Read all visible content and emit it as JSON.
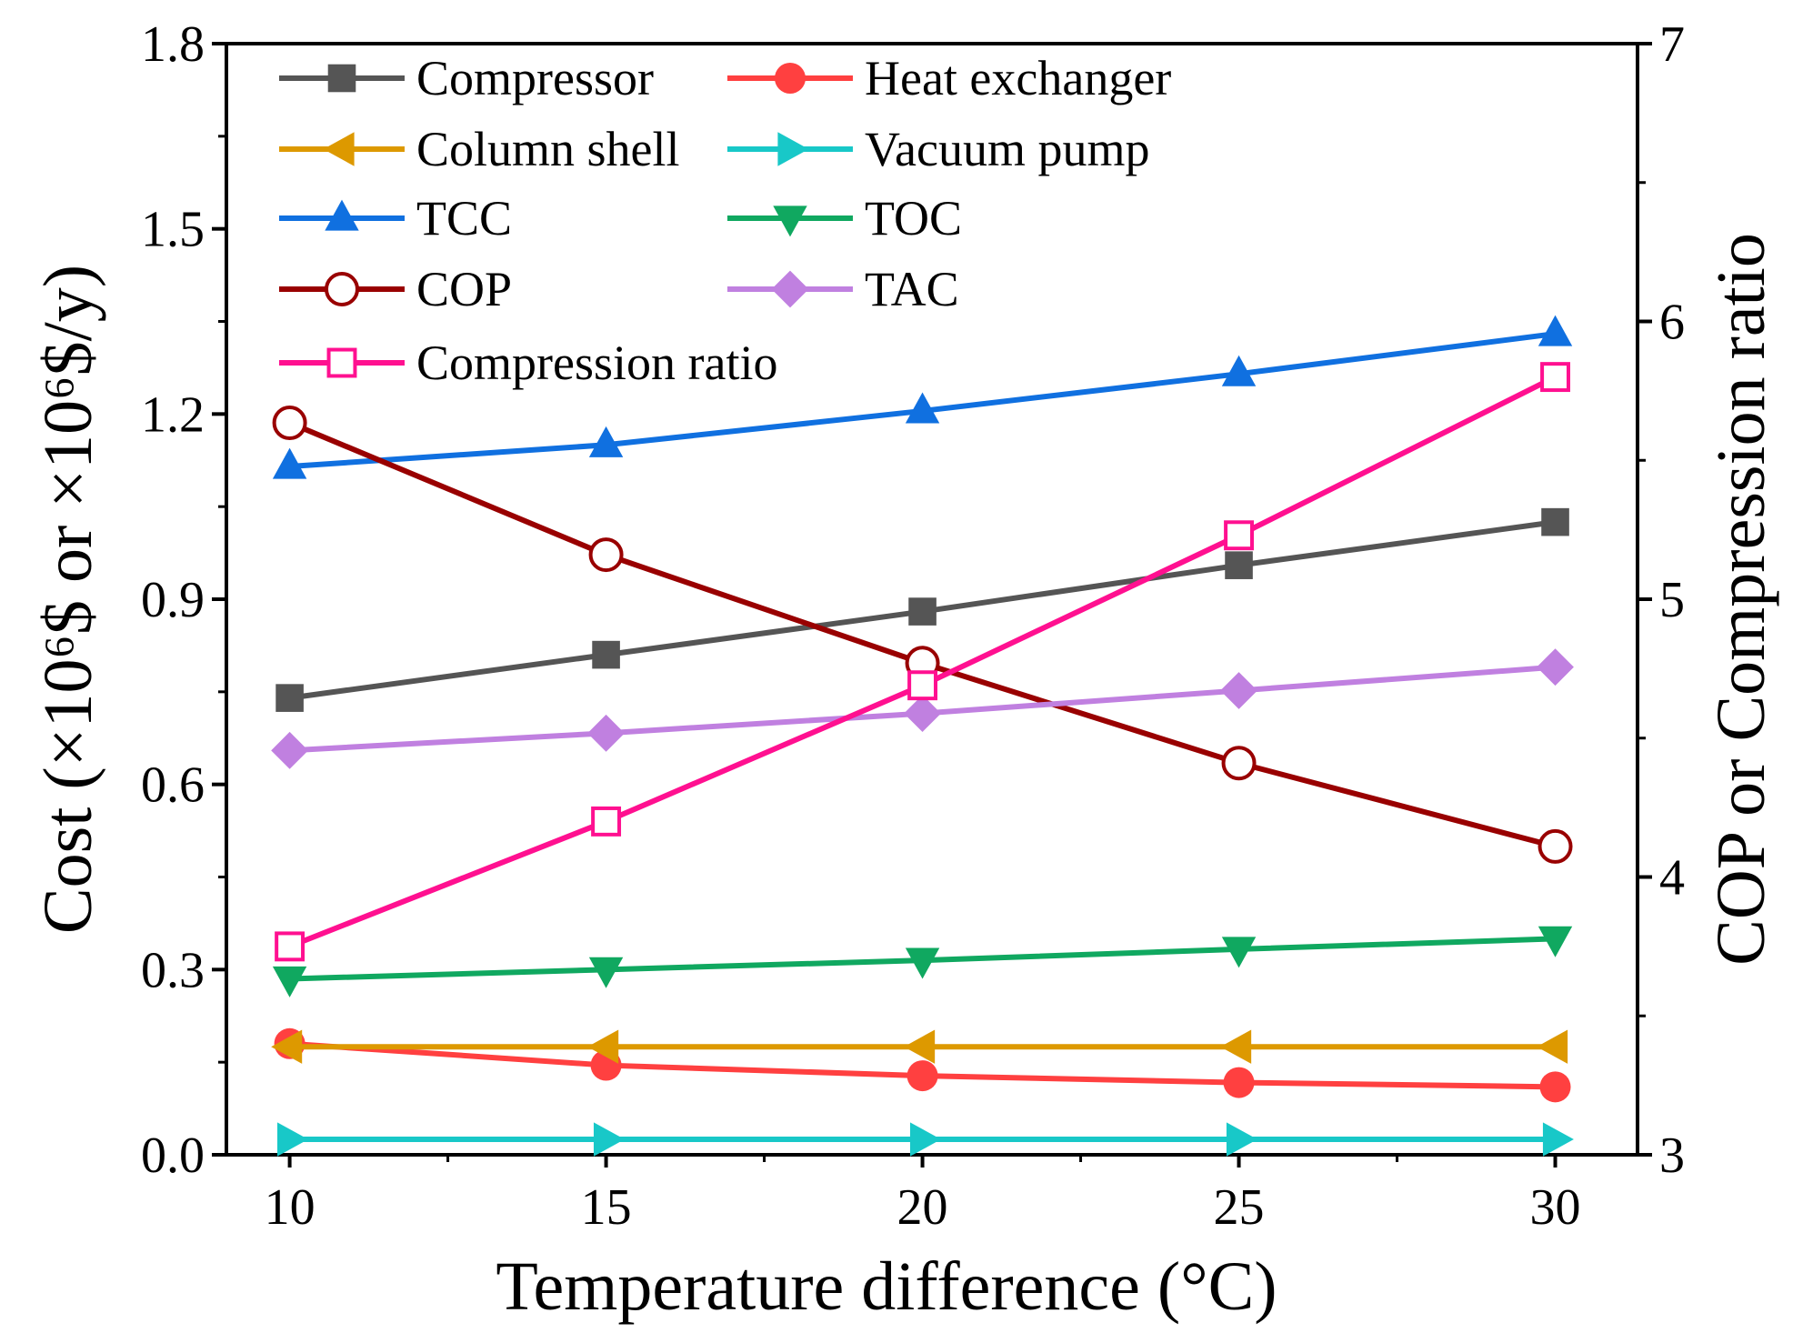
{
  "chart_data": {
    "type": "line",
    "xlabel": "Temperature difference (°C)",
    "ylabel": "Cost (×10⁶$ or ×10⁶$/y)",
    "ylabel_right": "COP or Compression ratio",
    "x": [
      10,
      15,
      20,
      25,
      30
    ],
    "xlim": [
      9,
      31.3
    ],
    "ylim": [
      0,
      1.8
    ],
    "ylim_right": [
      3,
      7
    ],
    "xticks": [
      "10",
      "15",
      "20",
      "25",
      "30"
    ],
    "yticks": [
      "0.0",
      "0.3",
      "0.6",
      "0.9",
      "1.2",
      "1.5",
      "1.8"
    ],
    "yticks_right": [
      "3",
      "4",
      "5",
      "6",
      "7"
    ],
    "legend_placement": "top-left",
    "series": [
      {
        "name": "Compressor",
        "axis": "left",
        "color": "#555555",
        "marker": "square-filled",
        "values": [
          0.74,
          0.81,
          0.88,
          0.955,
          1.025
        ]
      },
      {
        "name": "Heat exchanger",
        "axis": "left",
        "color": "#ff4040",
        "marker": "circle-filled",
        "values": [
          0.18,
          0.145,
          0.128,
          0.117,
          0.11
        ]
      },
      {
        "name": "Column shell",
        "axis": "left",
        "color": "#dd9900",
        "marker": "triangle-left",
        "values": [
          0.175,
          0.175,
          0.175,
          0.175,
          0.175
        ]
      },
      {
        "name": "Vacuum pump",
        "axis": "left",
        "color": "#18c8c8",
        "marker": "triangle-right",
        "values": [
          0.025,
          0.025,
          0.025,
          0.025,
          0.025
        ]
      },
      {
        "name": "TCC",
        "axis": "left",
        "color": "#1070e0",
        "marker": "triangle-up",
        "values": [
          1.115,
          1.15,
          1.205,
          1.265,
          1.33
        ]
      },
      {
        "name": "TOC",
        "axis": "left",
        "color": "#10a860",
        "marker": "triangle-down",
        "values": [
          0.285,
          0.3,
          0.315,
          0.333,
          0.35
        ]
      },
      {
        "name": "COP",
        "axis": "right",
        "color": "#990000",
        "marker": "circle-open",
        "values": [
          5.635,
          5.16,
          4.77,
          4.41,
          4.11
        ]
      },
      {
        "name": "TAC",
        "axis": "left",
        "color": "#c080e0",
        "marker": "diamond",
        "values": [
          0.655,
          0.683,
          0.715,
          0.752,
          0.79
        ]
      },
      {
        "name": "Compression ratio",
        "axis": "right",
        "color": "#ff1090",
        "marker": "square-open",
        "values": [
          3.75,
          4.2,
          4.69,
          5.23,
          5.8
        ]
      }
    ]
  }
}
